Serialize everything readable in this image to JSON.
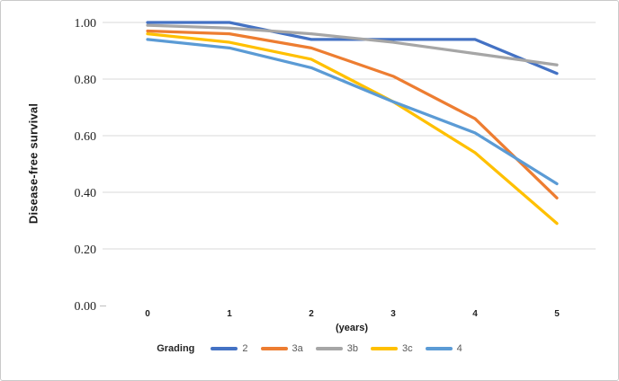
{
  "chart_data": {
    "type": "line",
    "title": "",
    "ylabel": "Disease-free survival",
    "xlabel": "(years)",
    "legend_title": "Grading",
    "categories": [
      "0",
      "1",
      "2",
      "3",
      "4",
      "5"
    ],
    "series": [
      {
        "name": "2",
        "color": "#4472C4",
        "values": [
          1.0,
          1.0,
          0.94,
          0.94,
          0.94,
          0.82
        ]
      },
      {
        "name": "3a",
        "color": "#ED7D31",
        "values": [
          0.97,
          0.96,
          0.91,
          0.81,
          0.66,
          0.38
        ]
      },
      {
        "name": "3b",
        "color": "#A6A6A6",
        "values": [
          0.99,
          0.98,
          0.96,
          0.93,
          0.89,
          0.85
        ]
      },
      {
        "name": "3c",
        "color": "#FFC000",
        "values": [
          0.96,
          0.93,
          0.87,
          0.72,
          0.54,
          0.29
        ]
      },
      {
        "name": "4",
        "color": "#5B9BD5",
        "values": [
          0.94,
          0.91,
          0.84,
          0.72,
          0.61,
          0.43
        ]
      }
    ],
    "yticks": [
      "1.00",
      "0.80",
      "0.60",
      "0.40",
      "0.20",
      "0.00"
    ],
    "ylim": [
      0,
      1
    ],
    "grid": true,
    "legend_position": "bottom",
    "gridline_color": "#D9D9D9",
    "axis_text_color": "#1f1f1f",
    "legend_text_color": "#595959"
  }
}
